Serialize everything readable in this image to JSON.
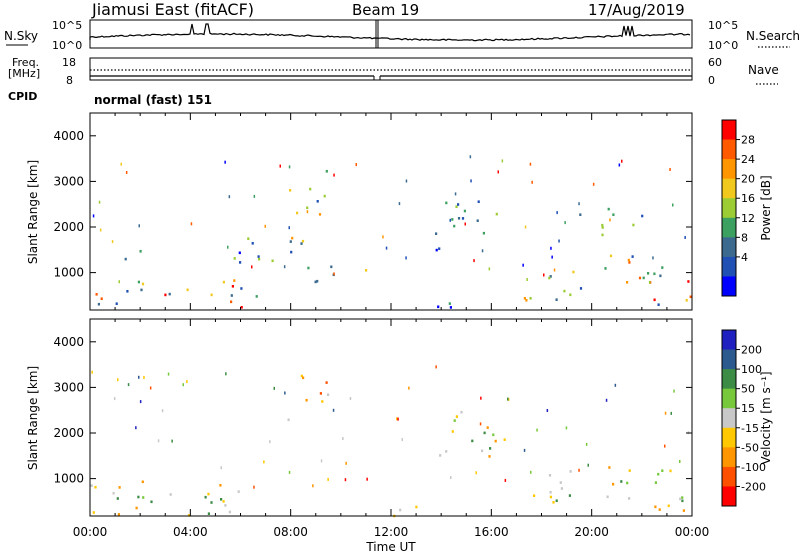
{
  "header": {
    "station": "Jiamusi East (fitACF)",
    "beam": "Beam 19",
    "date": "17/Aug/2019"
  },
  "noise_panel": {
    "left_label": "N.Sky",
    "left_ticks": [
      "10^5",
      "10^0"
    ],
    "right_label": "N.Search",
    "right_ticks": [
      "10^5",
      "10^0"
    ]
  },
  "freq_panel": {
    "left_label_1": "Freq.",
    "left_label_2": "[MHz]",
    "left_ticks": [
      "18",
      "8"
    ],
    "right_label": "Nave",
    "right_ticks": [
      "60",
      "0"
    ],
    "cpid_label": "CPID",
    "cpid_value": "normal (fast) 151"
  },
  "power_colorbar": {
    "title": "Power [dB]",
    "ticks": [
      "28",
      "24",
      "20",
      "16",
      "12",
      "8",
      "4"
    ],
    "colors": [
      "#ff0000",
      "#ff5a00",
      "#ff9600",
      "#f0c81e",
      "#9ccc34",
      "#3ca060",
      "#3c6a8e",
      "#2050b4",
      "#0000ff"
    ]
  },
  "velocity_colorbar": {
    "title": "Velocity [m s⁻¹]",
    "ticks": [
      "200",
      "100",
      "50",
      "15",
      "-15",
      "-50",
      "-100",
      "-200"
    ],
    "colors": [
      "#2020c0",
      "#2d5a8e",
      "#3c8c46",
      "#78c83c",
      "#c8c8c8",
      "#ffc800",
      "#ff9600",
      "#ff5000",
      "#ff0000"
    ]
  },
  "axes": {
    "ylabel": "Slant Range [km]",
    "xlabel": "Time UT",
    "y_ticks": [
      "4000",
      "3000",
      "2000",
      "1000"
    ],
    "x_ticks": [
      "00:00",
      "04:00",
      "08:00",
      "12:00",
      "16:00",
      "20:00",
      "00:00"
    ]
  },
  "chart_data": [
    {
      "type": "heatmap",
      "name": "Power",
      "x_range": [
        "00:00",
        "24:00"
      ],
      "y_range": [
        180,
        4500
      ],
      "scale": "dB",
      "clusters": [
        {
          "t": [
            0.0,
            3.2
          ],
          "r": [
            300,
            1000
          ],
          "level": "high"
        },
        {
          "t": [
            1.0,
            2.2
          ],
          "r": [
            1300,
            1600
          ],
          "level": "low"
        },
        {
          "t": [
            3.5,
            6.8
          ],
          "r": [
            250,
            900
          ],
          "level": "high"
        },
        {
          "t": [
            5.0,
            7.5
          ],
          "r": [
            1200,
            1800
          ],
          "level": "low"
        },
        {
          "t": [
            7.2,
            8.8
          ],
          "r": [
            1000,
            1800
          ],
          "level": "mid"
        },
        {
          "t": [
            7.8,
            9.5
          ],
          "r": [
            2300,
            3300
          ],
          "level": "mid"
        },
        {
          "t": [
            8.5,
            11.2
          ],
          "r": [
            700,
            1200
          ],
          "level": "mid"
        },
        {
          "t": [
            12.0,
            14.5
          ],
          "r": [
            200,
            500
          ],
          "level": "low"
        },
        {
          "t": [
            13.5,
            16.5
          ],
          "r": [
            1500,
            2600
          ],
          "level": "low"
        },
        {
          "t": [
            17.0,
            19.8
          ],
          "r": [
            400,
            1200
          ],
          "level": "mid"
        },
        {
          "t": [
            19.5,
            22.0
          ],
          "r": [
            1800,
            2500
          ],
          "level": "low"
        },
        {
          "t": [
            20.5,
            24.0
          ],
          "r": [
            300,
            1400
          ],
          "level": "high"
        }
      ]
    },
    {
      "type": "heatmap",
      "name": "Velocity",
      "x_range": [
        "00:00",
        "24:00"
      ],
      "y_range": [
        180,
        4500
      ],
      "unit": "m s-1",
      "clusters": [
        {
          "t": [
            0.0,
            3.2
          ],
          "r": [
            300,
            1000
          ],
          "level": "near-zero"
        },
        {
          "t": [
            0.0,
            4.5
          ],
          "r": [
            200,
            400
          ],
          "level": "negative"
        },
        {
          "t": [
            3.5,
            6.8
          ],
          "r": [
            250,
            900
          ],
          "level": "near-zero"
        },
        {
          "t": [
            7.8,
            9.5
          ],
          "r": [
            2300,
            3300
          ],
          "level": "negative"
        },
        {
          "t": [
            12.0,
            14.5
          ],
          "r": [
            200,
            500
          ],
          "level": "negative"
        },
        {
          "t": [
            13.5,
            16.5
          ],
          "r": [
            1500,
            2600
          ],
          "level": "near-zero"
        },
        {
          "t": [
            17.0,
            19.8
          ],
          "r": [
            400,
            1200
          ],
          "level": "near-zero"
        },
        {
          "t": [
            20.5,
            24.0
          ],
          "r": [
            300,
            1400
          ],
          "level": "near-zero"
        }
      ]
    }
  ]
}
